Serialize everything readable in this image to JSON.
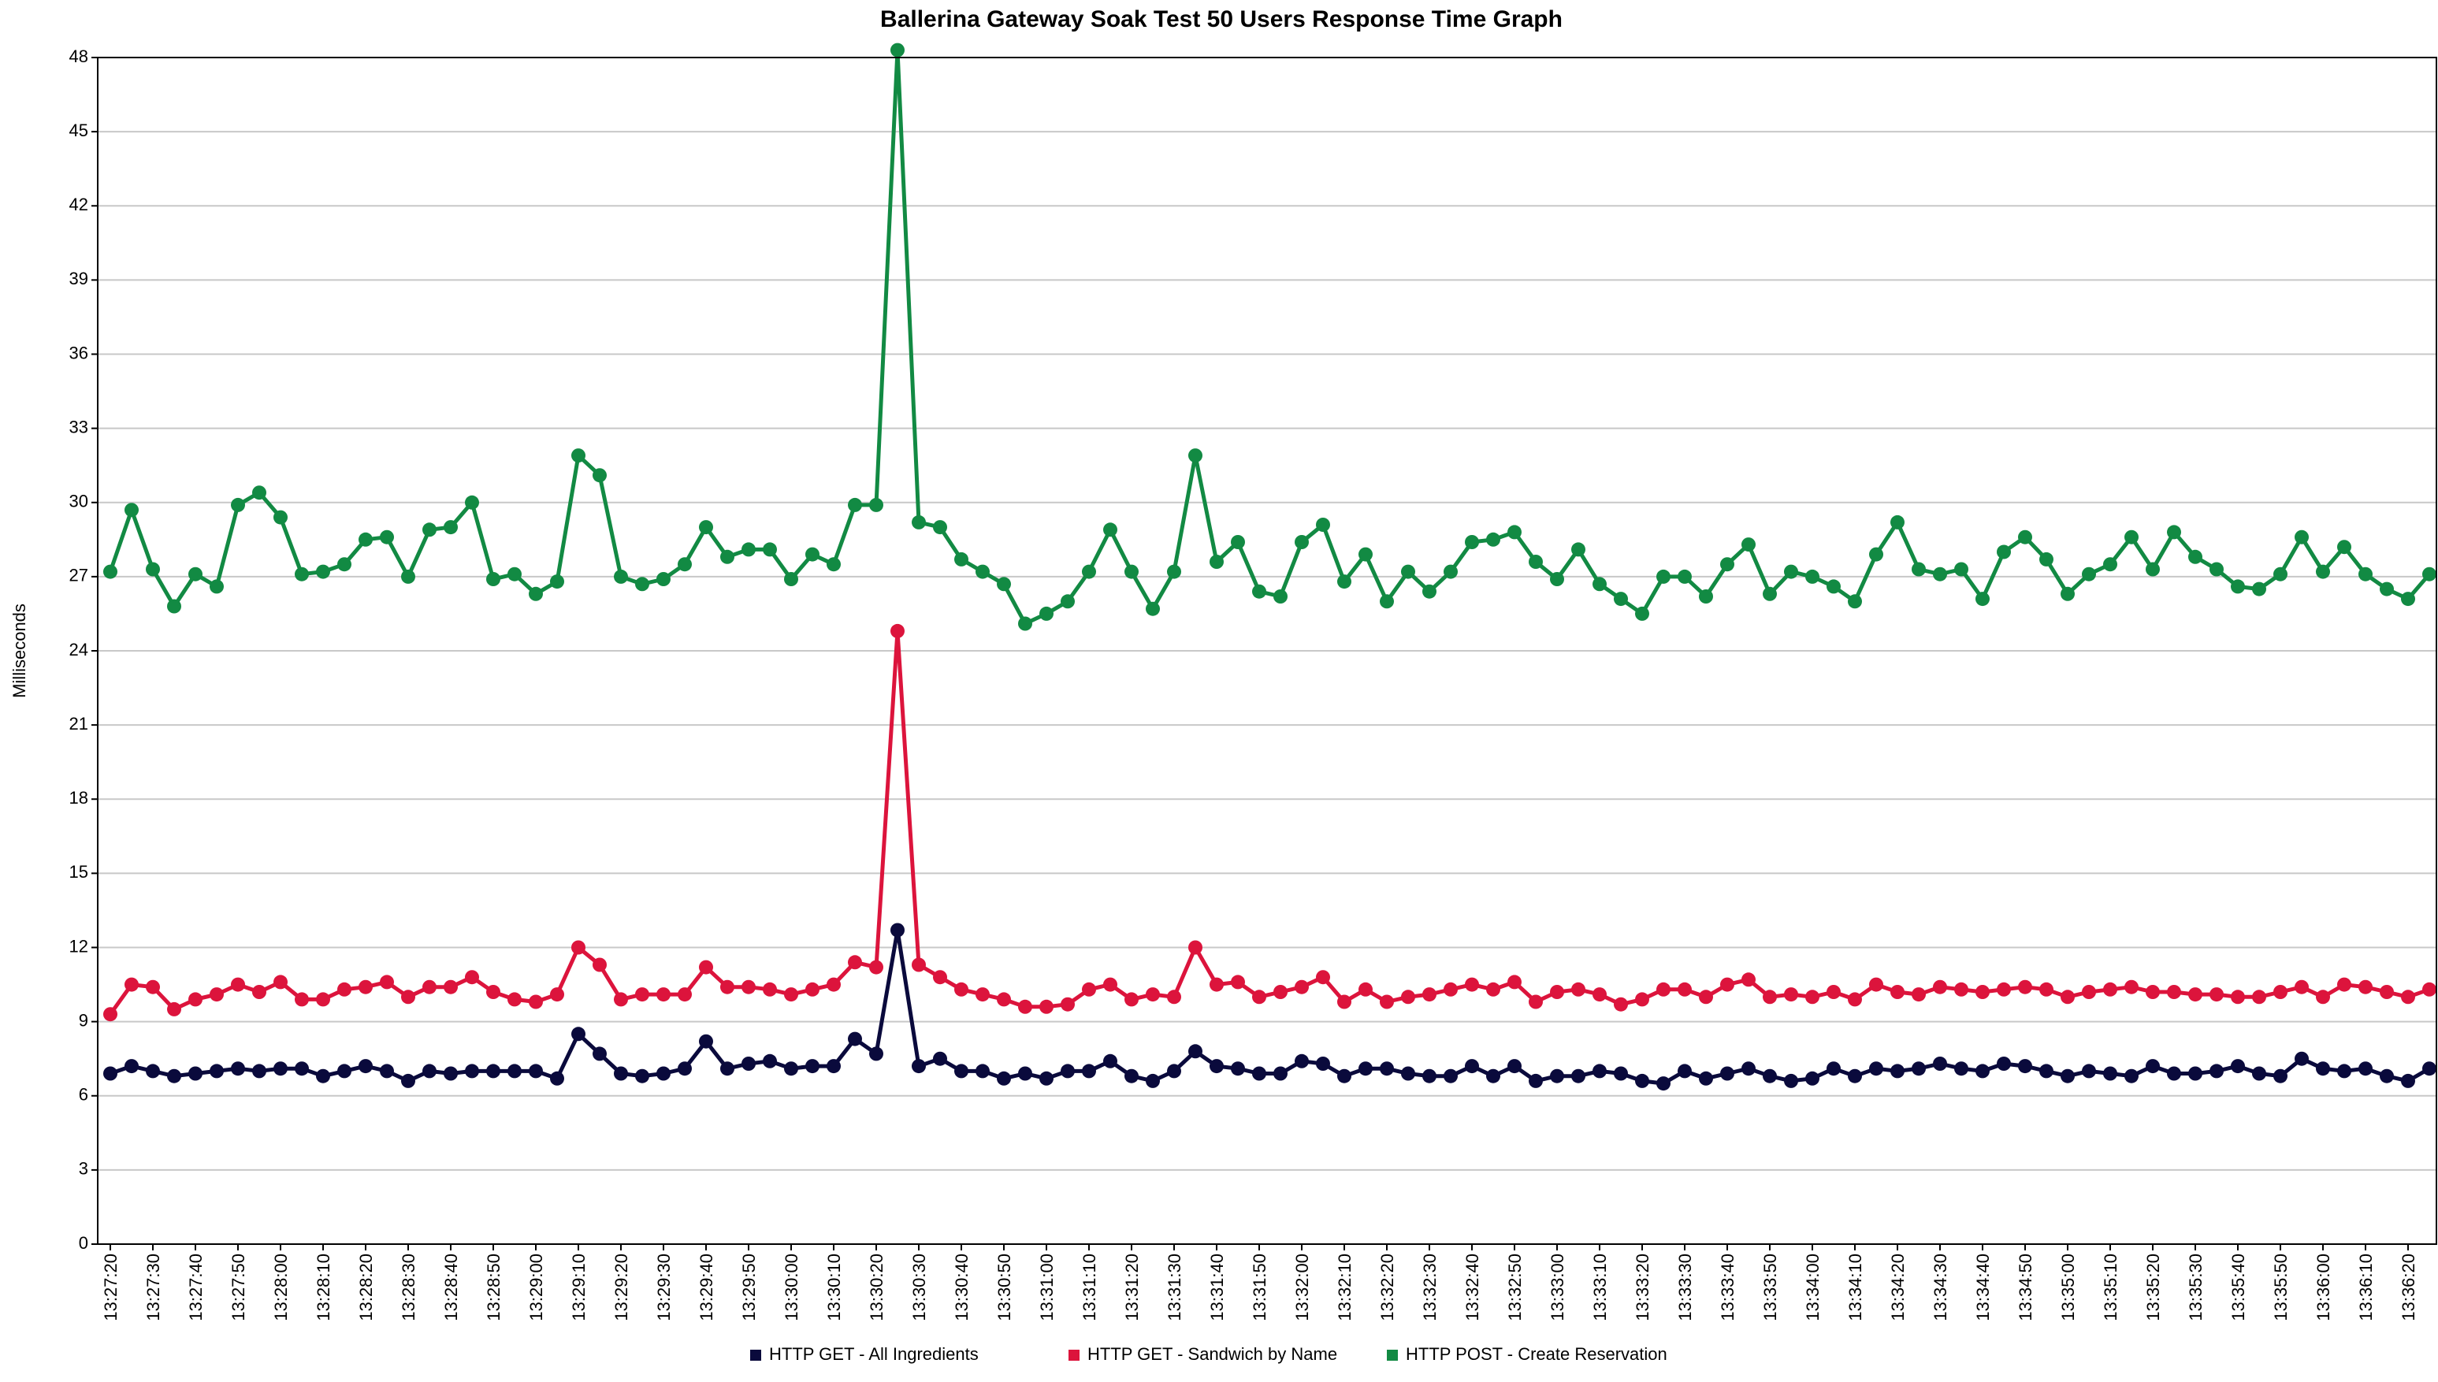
{
  "chart_data": {
    "type": "line",
    "title": "Ballerina Gateway Soak Test 50 Users Response Time Graph",
    "xlabel": "",
    "ylabel": "Milliseconds",
    "ylim": [
      0,
      48
    ],
    "yticks": [
      0,
      3,
      6,
      9,
      12,
      15,
      18,
      21,
      24,
      27,
      30,
      33,
      36,
      39,
      42,
      45,
      48
    ],
    "grid": true,
    "legend_position": "bottom",
    "x": [
      "13:27:20",
      "13:27:25",
      "13:27:30",
      "13:27:35",
      "13:27:40",
      "13:27:45",
      "13:27:50",
      "13:27:55",
      "13:28:00",
      "13:28:05",
      "13:28:10",
      "13:28:15",
      "13:28:20",
      "13:28:25",
      "13:28:30",
      "13:28:35",
      "13:28:40",
      "13:28:45",
      "13:28:50",
      "13:28:55",
      "13:29:00",
      "13:29:05",
      "13:29:10",
      "13:29:15",
      "13:29:20",
      "13:29:25",
      "13:29:30",
      "13:29:35",
      "13:29:40",
      "13:29:45",
      "13:29:50",
      "13:29:55",
      "13:30:00",
      "13:30:05",
      "13:30:10",
      "13:30:15",
      "13:30:20",
      "13:30:25",
      "13:30:30",
      "13:30:35",
      "13:30:40",
      "13:30:45",
      "13:30:50",
      "13:30:55",
      "13:31:00",
      "13:31:05",
      "13:31:10",
      "13:31:15",
      "13:31:20",
      "13:31:25",
      "13:31:30",
      "13:31:35",
      "13:31:40",
      "13:31:45",
      "13:31:50",
      "13:31:55",
      "13:32:00",
      "13:32:05",
      "13:32:10",
      "13:32:15",
      "13:32:20",
      "13:32:25",
      "13:32:30",
      "13:32:35",
      "13:32:40",
      "13:32:45",
      "13:32:50",
      "13:32:55",
      "13:33:00",
      "13:33:05",
      "13:33:10",
      "13:33:15",
      "13:33:20",
      "13:33:25",
      "13:33:30",
      "13:33:35",
      "13:33:40",
      "13:33:45",
      "13:33:50",
      "13:33:55",
      "13:34:00",
      "13:34:05",
      "13:34:10",
      "13:34:15",
      "13:34:20",
      "13:34:25",
      "13:34:30",
      "13:34:35",
      "13:34:40",
      "13:34:45",
      "13:34:50",
      "13:34:55",
      "13:35:00",
      "13:35:05",
      "13:35:10",
      "13:35:15",
      "13:35:20",
      "13:35:25",
      "13:35:30",
      "13:35:35",
      "13:35:40",
      "13:35:45",
      "13:35:50",
      "13:35:55",
      "13:36:00",
      "13:36:05",
      "13:36:10",
      "13:36:15",
      "13:36:20",
      "13:36:25"
    ],
    "x_tick_labels": [
      "13:27:20",
      "13:27:30",
      "13:27:40",
      "13:27:50",
      "13:28:00",
      "13:28:10",
      "13:28:20",
      "13:28:30",
      "13:28:40",
      "13:28:50",
      "13:29:00",
      "13:29:10",
      "13:29:20",
      "13:29:30",
      "13:29:40",
      "13:29:50",
      "13:30:00",
      "13:30:10",
      "13:30:20",
      "13:30:30",
      "13:30:40",
      "13:30:50",
      "13:31:00",
      "13:31:10",
      "13:31:20",
      "13:31:30",
      "13:31:40",
      "13:31:50",
      "13:32:00",
      "13:32:10",
      "13:32:20",
      "13:32:30",
      "13:32:40",
      "13:32:50",
      "13:33:00",
      "13:33:10",
      "13:33:20",
      "13:33:30",
      "13:33:40",
      "13:33:50",
      "13:34:00",
      "13:34:10",
      "13:34:20",
      "13:34:30",
      "13:34:40",
      "13:34:50",
      "13:35:00",
      "13:35:10",
      "13:35:20",
      "13:35:30",
      "13:35:40",
      "13:35:50",
      "13:36:00",
      "13:36:10",
      "13:36:20"
    ],
    "series": [
      {
        "name": "HTTP GET - All Ingredients",
        "color": "#0a0a3c",
        "values": [
          6.9,
          7.2,
          7.0,
          6.8,
          6.9,
          7.0,
          7.1,
          7.0,
          7.1,
          7.1,
          6.8,
          7.0,
          7.2,
          7.0,
          6.6,
          7.0,
          6.9,
          7.0,
          7.0,
          7.0,
          7.0,
          6.7,
          8.5,
          7.7,
          6.9,
          6.8,
          6.9,
          7.1,
          8.2,
          7.1,
          7.3,
          7.4,
          7.1,
          7.2,
          7.2,
          8.3,
          7.7,
          12.7,
          7.2,
          7.5,
          7.0,
          7.0,
          6.7,
          6.9,
          6.7,
          7.0,
          7.0,
          7.4,
          6.8,
          6.6,
          7.0,
          7.8,
          7.2,
          7.1,
          6.9,
          6.9,
          7.4,
          7.3,
          6.8,
          7.1,
          7.1,
          6.9,
          6.8,
          6.8,
          7.2,
          6.8,
          7.2,
          6.6,
          6.8,
          6.8,
          7.0,
          6.9,
          6.6,
          6.5,
          7.0,
          6.7,
          6.9,
          7.1,
          6.8,
          6.6,
          6.7,
          7.1,
          6.8,
          7.1,
          7.0,
          7.1,
          7.3,
          7.1,
          7.0,
          7.3,
          7.2,
          7.0,
          6.8,
          7.0,
          6.9,
          6.8,
          7.2,
          6.9,
          6.9,
          7.0,
          7.2,
          6.9,
          6.8,
          7.5,
          7.1,
          7.0,
          7.1,
          6.8,
          6.6,
          7.1
        ]
      },
      {
        "name": "HTTP GET - Sandwich by Name",
        "color": "#dc143c",
        "values": [
          9.3,
          10.5,
          10.4,
          9.5,
          9.9,
          10.1,
          10.5,
          10.2,
          10.6,
          9.9,
          9.9,
          10.3,
          10.4,
          10.6,
          10.0,
          10.4,
          10.4,
          10.8,
          10.2,
          9.9,
          9.8,
          10.1,
          12.0,
          11.3,
          9.9,
          10.1,
          10.1,
          10.1,
          11.2,
          10.4,
          10.4,
          10.3,
          10.1,
          10.3,
          10.5,
          11.4,
          11.2,
          24.8,
          11.3,
          10.8,
          10.3,
          10.1,
          9.9,
          9.6,
          9.6,
          9.7,
          10.3,
          10.5,
          9.9,
          10.1,
          10.0,
          12.0,
          10.5,
          10.6,
          10.0,
          10.2,
          10.4,
          10.8,
          9.8,
          10.3,
          9.8,
          10.0,
          10.1,
          10.3,
          10.5,
          10.3,
          10.6,
          9.8,
          10.2,
          10.3,
          10.1,
          9.7,
          9.9,
          10.3,
          10.3,
          10.0,
          10.5,
          10.7,
          10.0,
          10.1,
          10.0,
          10.2,
          9.9,
          10.5,
          10.2,
          10.1,
          10.4,
          10.3,
          10.2,
          10.3,
          10.4,
          10.3,
          10.0,
          10.2,
          10.3,
          10.4,
          10.2,
          10.2,
          10.1,
          10.1,
          10.0,
          10.0,
          10.2,
          10.4,
          10.0,
          10.5,
          10.4,
          10.2,
          10.0,
          10.3
        ]
      },
      {
        "name": "HTTP POST - Create Reservation",
        "color": "#128a43",
        "values": [
          27.2,
          29.7,
          27.3,
          25.8,
          27.1,
          26.6,
          29.9,
          30.4,
          29.4,
          27.1,
          27.2,
          27.5,
          28.5,
          28.6,
          27.0,
          28.9,
          29.0,
          30.0,
          26.9,
          27.1,
          26.3,
          26.8,
          31.9,
          31.1,
          27.0,
          26.7,
          26.9,
          27.5,
          29.0,
          27.8,
          28.1,
          28.1,
          26.9,
          27.9,
          27.5,
          29.9,
          29.9,
          48.3,
          29.2,
          29.0,
          27.7,
          27.2,
          26.7,
          25.1,
          25.5,
          26.0,
          27.2,
          28.9,
          27.2,
          25.7,
          27.2,
          31.9,
          27.6,
          28.4,
          26.4,
          26.2,
          28.4,
          29.1,
          26.8,
          27.9,
          26.0,
          27.2,
          26.4,
          27.2,
          28.4,
          28.5,
          28.8,
          27.6,
          26.9,
          28.1,
          26.7,
          26.1,
          25.5,
          27.0,
          27.0,
          26.2,
          27.5,
          28.3,
          26.3,
          27.2,
          27.0,
          26.6,
          26.0,
          27.9,
          29.2,
          27.3,
          27.1,
          27.3,
          26.1,
          28.0,
          28.6,
          27.7,
          26.3,
          27.1,
          27.5,
          28.6,
          27.3,
          28.8,
          27.8,
          27.3,
          26.6,
          26.5,
          27.1,
          28.6,
          27.2,
          28.2,
          27.1,
          26.5,
          26.1,
          27.1
        ]
      }
    ]
  }
}
